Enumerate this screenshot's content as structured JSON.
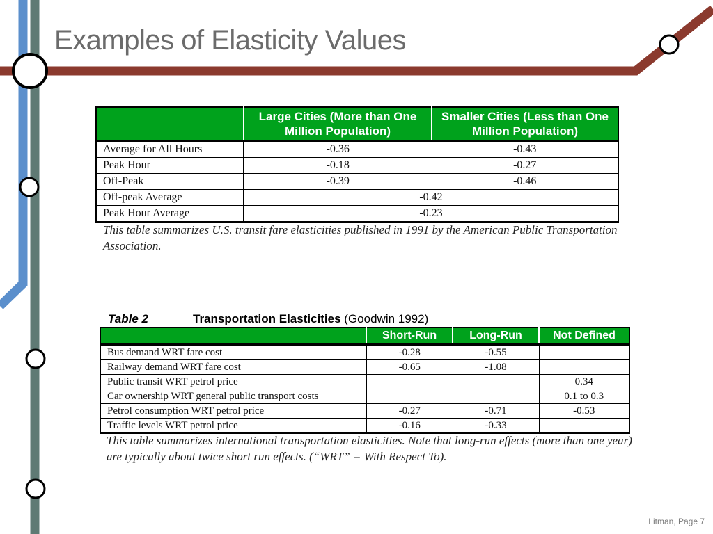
{
  "slide": {
    "title": "Examples of Elasticity Values",
    "footer": "Litman, Page 7"
  },
  "table1": {
    "headers": [
      "",
      "Large Cities (More than One Million Population)",
      "Smaller Cities (Less than One Million Population)"
    ],
    "rows": [
      {
        "label": "Average for All Hours",
        "large": "-0.36",
        "small": "-0.43"
      },
      {
        "label": "Peak Hour",
        "large": "-0.18",
        "small": "-0.27"
      },
      {
        "label": "Off-Peak",
        "large": "-0.39",
        "small": "-0.46"
      },
      {
        "label": "Off-peak Average",
        "combined": "-0.42"
      },
      {
        "label": "Peak Hour Average",
        "combined": "-0.23"
      }
    ],
    "caption": "This table summarizes U.S. transit fare elasticities published in 1991 by the American Public Transportation Association."
  },
  "table2": {
    "number": "Table 2",
    "name": "Transportation Elasticities",
    "source": "(Goodwin 1992)",
    "headers": [
      "",
      "Short-Run",
      "Long-Run",
      "Not Defined"
    ],
    "rows": [
      {
        "label": "Bus demand WRT fare cost",
        "short": "-0.28",
        "long": "-0.55",
        "nd": ""
      },
      {
        "label": "Railway demand WRT fare cost",
        "short": "-0.65",
        "long": "-1.08",
        "nd": ""
      },
      {
        "label": "Public transit WRT petrol price",
        "short": "",
        "long": "",
        "nd": "0.34"
      },
      {
        "label": "Car ownership WRT general public transport costs",
        "short": "",
        "long": "",
        "nd": "0.1 to 0.3"
      },
      {
        "label": "Petrol consumption WRT petrol price",
        "short": "-0.27",
        "long": "-0.71",
        "nd": "-0.53"
      },
      {
        "label": "Traffic levels WRT petrol price",
        "short": "-0.16",
        "long": "-0.33",
        "nd": ""
      }
    ],
    "caption": "This table summarizes international transportation elasticities. Note that long-run effects (more than one year) are typically about twice short run effects. (“WRT” = With Respect To)."
  },
  "colors": {
    "header_green": "#00a21c",
    "line_red": "#8b3a2e",
    "line_blue": "#5b8fcc",
    "line_gray": "#5f7a74"
  }
}
